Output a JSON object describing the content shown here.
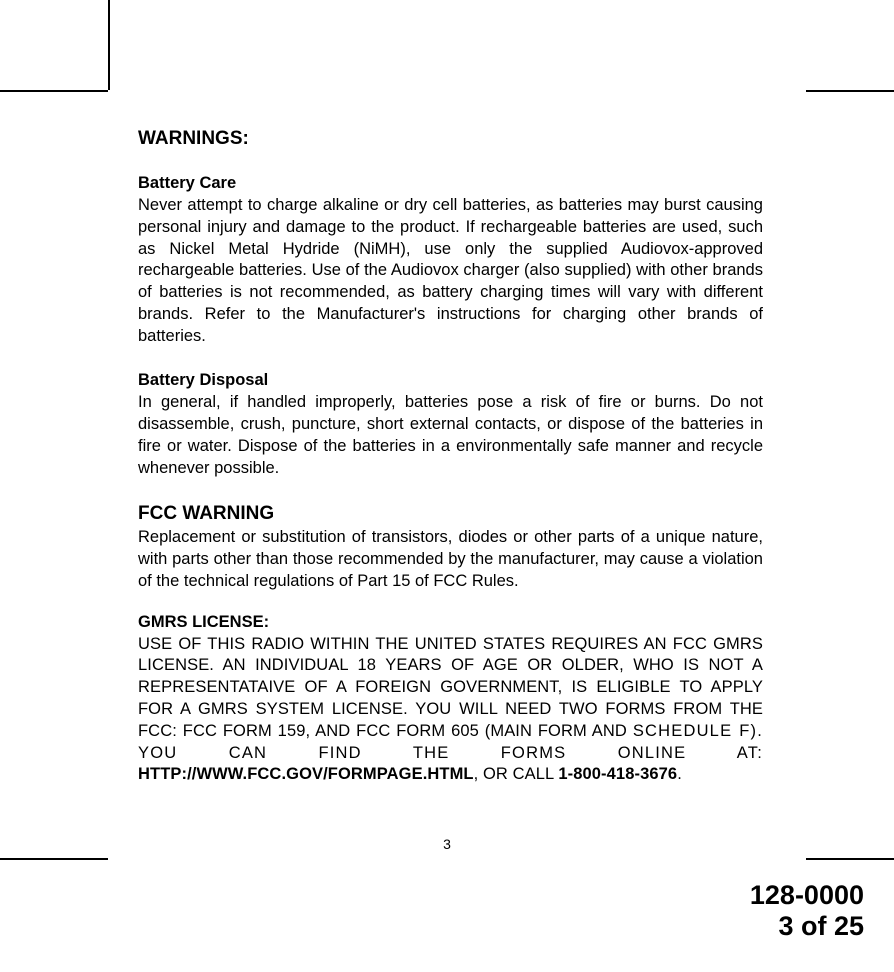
{
  "headings": {
    "warnings": "WARNINGS:",
    "battery_care": "Battery Care",
    "battery_disposal": "Battery Disposal",
    "fcc_warning": "FCC WARNING",
    "gmrs_license": "GMRS LICENSE:"
  },
  "paragraphs": {
    "battery_care": "Never attempt to charge alkaline or dry cell batteries, as batteries may burst causing personal injury and damage to the product. If rechargeable batteries are used, such as Nickel Metal Hydride (NiMH), use only the supplied Audiovox-approved rechargeable batteries. Use of the Audiovox charger (also supplied)  with other brands of  batteries is not recommended, as battery charging times will vary with different brands. Refer to the Manufacturer's instructions for charging other brands of batteries.",
    "battery_disposal": "In general, if handled improperly, batteries pose a risk of fire or burns. Do not disassemble, crush, puncture, short external contacts, or dispose of the batteries in fire or water. Dispose of the batteries in a environmentally safe manner and recycle whenever possible.",
    "fcc_warning": "Replacement or substitution of transistors, diodes or other parts of a unique nature, with parts other than those recommended by the manufacturer, may cause a violation of the technical regulations of Part 15 of FCC Rules.",
    "gmrs_p1": "USE OF THIS RADIO WITHIN THE UNITED STATES REQUIRES AN FCC GMRS LICENSE.  AN INDIVIDUAL 18 YEARS OF AGE OR OLDER, WHO IS NOT A REPRESENTATAIVE OF A FOREIGN GOVERNMENT, IS ELIGIBLE TO APPLY FOR A GMRS SYSTEM LICENSE.  YOU WILL NEED TWO FORMS FROM THE FCC: FCC FORM 159, AND FCC FORM 605 (MAIN FORM AND ",
    "gmrs_schedule": "SCHEDULE F). YOU CAN FIND THE FORMS ONLINE AT:",
    "gmrs_url": "HTTP://WWW.FCC.GOV/FORMPAGE.HTML",
    "gmrs_or": ", OR CALL ",
    "gmrs_phone": "1-800-418-3676",
    "gmrs_period": "."
  },
  "footer": {
    "page_num": "3",
    "doc_num": "128-0000",
    "page_of": "3 of 25"
  },
  "colors": {
    "text": "#000000",
    "background": "#ffffff"
  },
  "fonts": {
    "body_size": 16.5,
    "heading_size": 19,
    "footer_size": 27,
    "page_num_size": 14
  }
}
